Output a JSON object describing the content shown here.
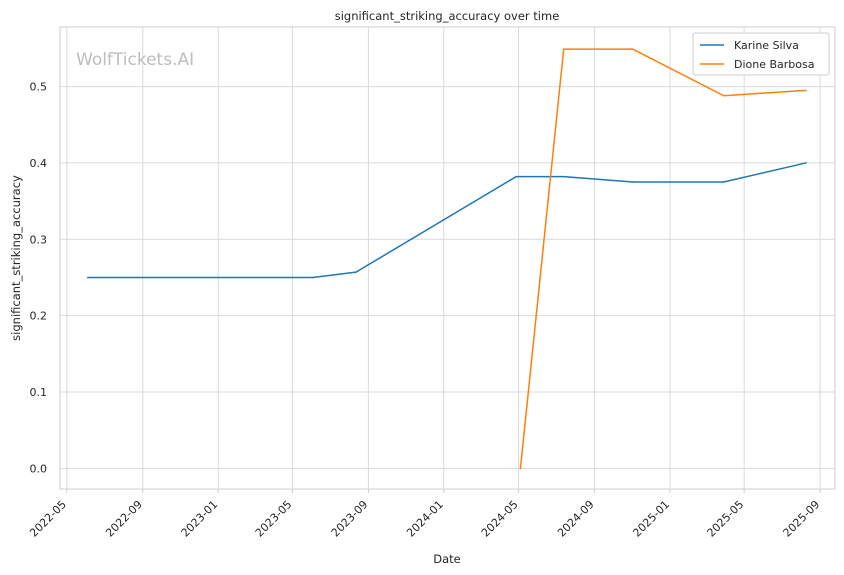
{
  "chart_data": {
    "type": "line",
    "title": "significant_striking_accuracy over time",
    "xlabel": "Date",
    "ylabel": "significant_striking_accuracy",
    "watermark": "WolfTickets.AI",
    "x_ticks": [
      "2022-05",
      "2022-09",
      "2023-01",
      "2023-05",
      "2023-09",
      "2024-01",
      "2024-05",
      "2024-09",
      "2025-01",
      "2025-05",
      "2025-09"
    ],
    "y_ticks": [
      "0.0",
      "0.1",
      "0.2",
      "0.3",
      "0.4",
      "0.5"
    ],
    "xlim": [
      "2022-04-20",
      "2025-09-25"
    ],
    "ylim": [
      -0.027,
      0.578
    ],
    "grid": true,
    "legend_position": "top-right",
    "series": [
      {
        "name": "Karine Silva",
        "color": "#1f77b4",
        "points": [
          {
            "x": "2022-06-04",
            "y": 0.25
          },
          {
            "x": "2023-06-03",
            "y": 0.25
          },
          {
            "x": "2023-08-12",
            "y": 0.257
          },
          {
            "x": "2024-04-27",
            "y": 0.382
          },
          {
            "x": "2024-07-13",
            "y": 0.382
          },
          {
            "x": "2024-11-02",
            "y": 0.375
          },
          {
            "x": "2025-03-29",
            "y": 0.375
          },
          {
            "x": "2025-08-09",
            "y": 0.4
          }
        ]
      },
      {
        "name": "Dione Barbosa",
        "color": "#ff7f0e",
        "points": [
          {
            "x": "2024-05-04",
            "y": 0.0
          },
          {
            "x": "2024-07-13",
            "y": 0.549
          },
          {
            "x": "2024-11-02",
            "y": 0.549
          },
          {
            "x": "2025-03-29",
            "y": 0.488
          },
          {
            "x": "2025-08-09",
            "y": 0.495
          }
        ]
      }
    ]
  }
}
